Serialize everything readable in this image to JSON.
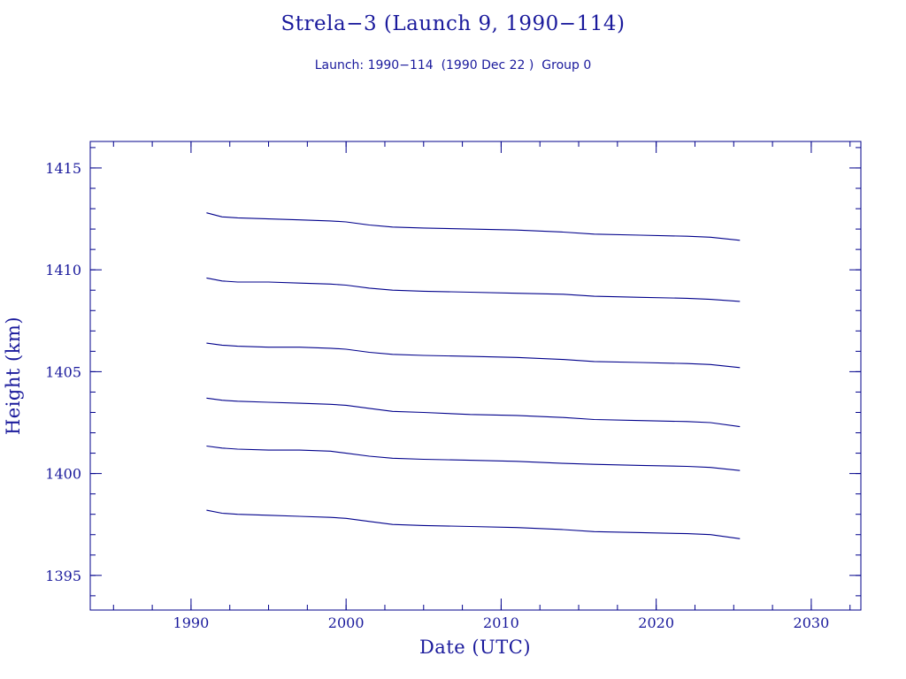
{
  "chart_data": {
    "type": "line",
    "title": "Strela−3 (Launch 9, 1990−114)",
    "subtitle": "Launch: 1990−114  (1990 Dec 22 )  Group 0",
    "xlabel": "Date (UTC)",
    "ylabel": "Height (km)",
    "xlim": [
      1983.5,
      2033.2
    ],
    "ylim": [
      1393.3,
      1416.3
    ],
    "x_ticks": [
      1990,
      2000,
      2010,
      2020,
      2030
    ],
    "x_minor_step": 2.5,
    "y_ticks": [
      1395,
      1400,
      1405,
      1410,
      1415
    ],
    "y_minor_step": 1,
    "grid": false,
    "color": "#00008b",
    "series": [
      {
        "x": [
          1991.0,
          1992.0,
          1993.0,
          1995.0,
          1997.0,
          1999.0,
          2000.0,
          2001.5,
          2003.0,
          2005.0,
          2008.0,
          2011.0,
          2014.0,
          2016.0,
          2019.0,
          2022.0,
          2023.5,
          2025.4
        ],
        "y": [
          1412.8,
          1412.6,
          1412.55,
          1412.5,
          1412.45,
          1412.4,
          1412.35,
          1412.2,
          1412.1,
          1412.05,
          1412.0,
          1411.95,
          1411.85,
          1411.75,
          1411.7,
          1411.65,
          1411.6,
          1411.45
        ]
      },
      {
        "x": [
          1991.0,
          1992.0,
          1993.0,
          1995.0,
          1997.0,
          1999.0,
          2000.0,
          2001.5,
          2003.0,
          2005.0,
          2008.0,
          2011.0,
          2014.0,
          2016.0,
          2019.0,
          2022.0,
          2023.5,
          2025.4
        ],
        "y": [
          1409.6,
          1409.45,
          1409.4,
          1409.4,
          1409.35,
          1409.3,
          1409.25,
          1409.1,
          1409.0,
          1408.95,
          1408.9,
          1408.85,
          1408.8,
          1408.7,
          1408.65,
          1408.6,
          1408.55,
          1408.45
        ]
      },
      {
        "x": [
          1991.0,
          1992.0,
          1993.0,
          1995.0,
          1997.0,
          1999.0,
          2000.0,
          2001.5,
          2003.0,
          2005.0,
          2008.0,
          2011.0,
          2014.0,
          2016.0,
          2019.0,
          2022.0,
          2023.5,
          2025.4
        ],
        "y": [
          1406.4,
          1406.3,
          1406.25,
          1406.2,
          1406.2,
          1406.15,
          1406.1,
          1405.95,
          1405.85,
          1405.8,
          1405.75,
          1405.7,
          1405.6,
          1405.5,
          1405.45,
          1405.4,
          1405.35,
          1405.2
        ]
      },
      {
        "x": [
          1991.0,
          1992.0,
          1993.0,
          1995.0,
          1997.0,
          1999.0,
          2000.0,
          2001.5,
          2003.0,
          2005.0,
          2008.0,
          2011.0,
          2014.0,
          2016.0,
          2019.0,
          2022.0,
          2023.5,
          2025.4
        ],
        "y": [
          1403.7,
          1403.6,
          1403.55,
          1403.5,
          1403.45,
          1403.4,
          1403.35,
          1403.2,
          1403.05,
          1403.0,
          1402.9,
          1402.85,
          1402.75,
          1402.65,
          1402.6,
          1402.55,
          1402.5,
          1402.3
        ]
      },
      {
        "x": [
          1991.0,
          1992.0,
          1993.0,
          1995.0,
          1997.0,
          1999.0,
          2000.0,
          2001.5,
          2003.0,
          2005.0,
          2008.0,
          2011.0,
          2014.0,
          2016.0,
          2019.0,
          2022.0,
          2023.5,
          2025.4
        ],
        "y": [
          1401.35,
          1401.25,
          1401.2,
          1401.15,
          1401.15,
          1401.1,
          1401.0,
          1400.85,
          1400.75,
          1400.7,
          1400.65,
          1400.6,
          1400.5,
          1400.45,
          1400.4,
          1400.35,
          1400.3,
          1400.15
        ]
      },
      {
        "x": [
          1991.0,
          1992.0,
          1993.0,
          1995.0,
          1997.0,
          1999.0,
          2000.0,
          2001.5,
          2003.0,
          2005.0,
          2008.0,
          2011.0,
          2014.0,
          2016.0,
          2019.0,
          2022.0,
          2023.5,
          2025.4
        ],
        "y": [
          1398.2,
          1398.05,
          1398.0,
          1397.95,
          1397.9,
          1397.85,
          1397.8,
          1397.65,
          1397.5,
          1397.45,
          1397.4,
          1397.35,
          1397.25,
          1397.15,
          1397.1,
          1397.05,
          1397.0,
          1396.8
        ]
      }
    ]
  }
}
